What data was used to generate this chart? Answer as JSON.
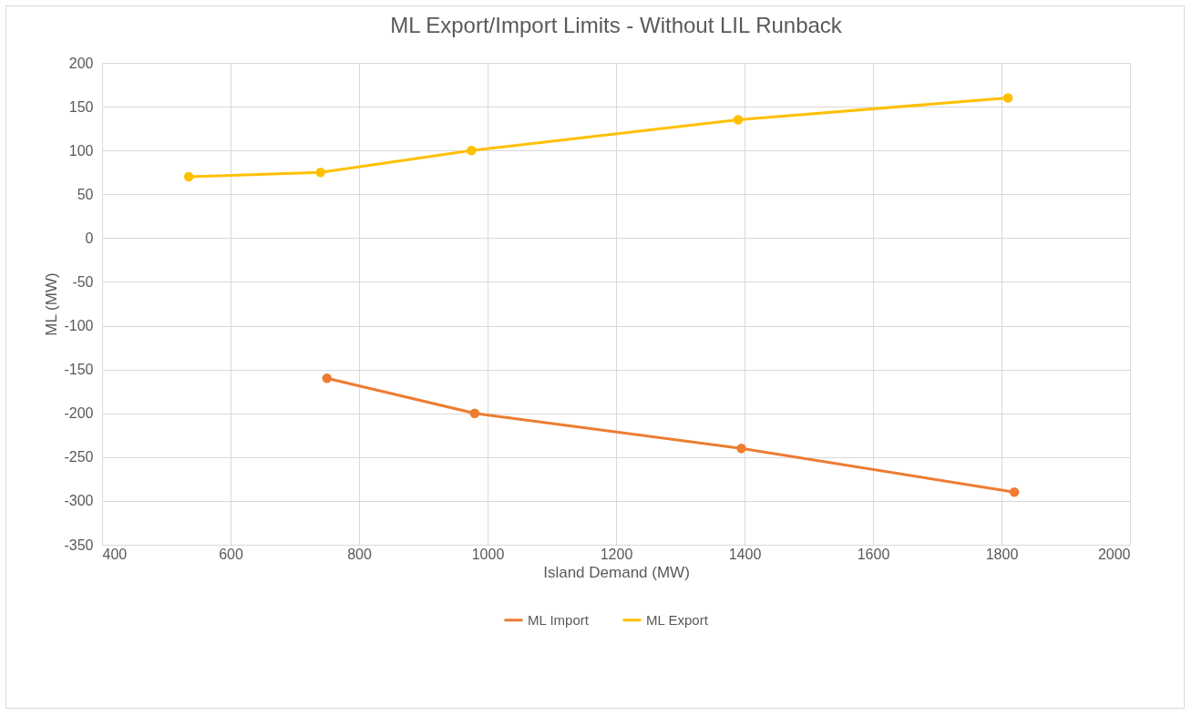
{
  "chart_data": {
    "type": "line",
    "title": "ML Export/Import Limits - Without LIL Runback",
    "xlabel": "Island Demand (MW)",
    "ylabel": "ML (MW)",
    "series": [
      {
        "name": "ML Import",
        "color": "#ed7d31",
        "x": [
          750,
          980,
          1395,
          1820
        ],
        "values": [
          -160,
          -200,
          -240,
          -290
        ]
      },
      {
        "name": "ML Export",
        "color": "#ffc000",
        "x": [
          535,
          740,
          975,
          1390,
          1810
        ],
        "values": [
          70,
          75,
          100,
          135,
          160
        ]
      }
    ],
    "xlim": [
      400,
      2000
    ],
    "xticks": [
      400,
      600,
      800,
      1000,
      1200,
      1400,
      1600,
      1800,
      2000
    ],
    "ylim": [
      -350,
      200
    ],
    "yticks": [
      -350,
      -300,
      -250,
      -200,
      -150,
      -100,
      -50,
      0,
      50,
      100,
      150,
      200
    ],
    "grid": true,
    "legend": "bottom",
    "marker": "circle",
    "line_style": "solid"
  }
}
